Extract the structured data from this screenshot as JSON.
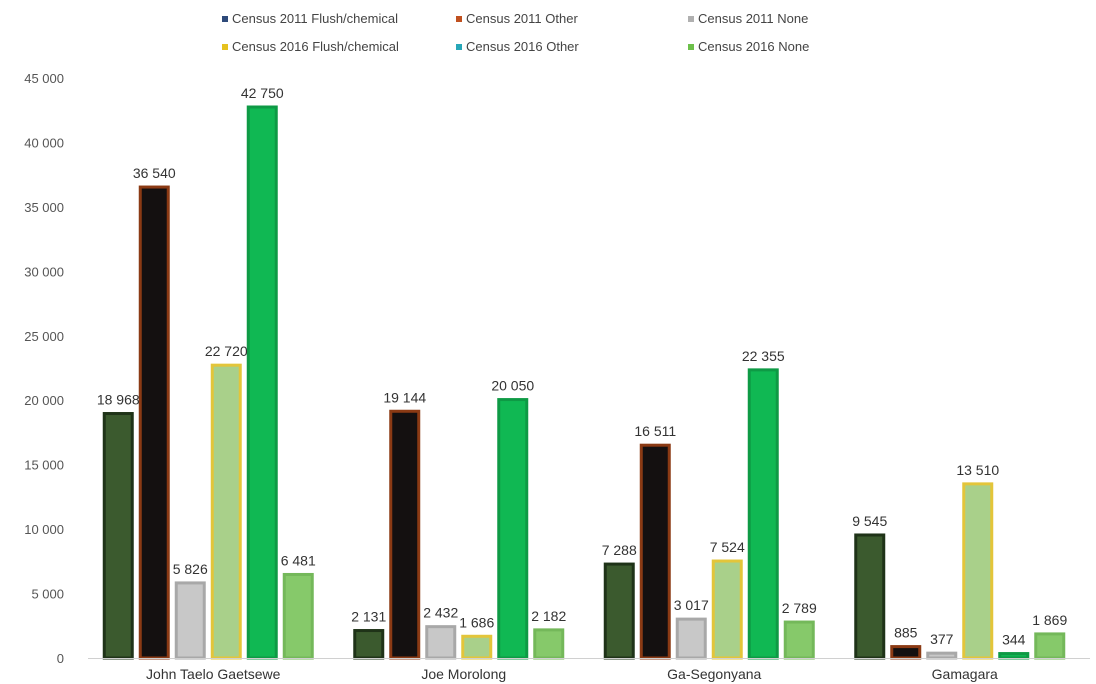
{
  "chart_data": {
    "type": "bar",
    "categories": [
      "John Taelo Gaetsewe",
      "Joe Morolong",
      "Ga-Segonyana",
      "Gamagara"
    ],
    "series": [
      {
        "name": "Census 2011 Flush/chemical",
        "values": [
          18968,
          2131,
          7288,
          9545
        ],
        "labels": [
          "18 968",
          "2 131",
          "7 288",
          "9 545"
        ],
        "legend_color": "#2e4a7a",
        "bar_color": "#3b5a2e",
        "border_color": "#1f3318"
      },
      {
        "name": "Census 2011 Other",
        "values": [
          36540,
          19144,
          16511,
          885
        ],
        "labels": [
          "36 540",
          "19 144",
          "16 511",
          "885"
        ],
        "legend_color": "#c0501f",
        "bar_color": "#141010",
        "border_color": "#8b3a14"
      },
      {
        "name": "Census 2011 None",
        "values": [
          5826,
          2432,
          3017,
          377
        ],
        "labels": [
          "5 826",
          "2 432",
          "3 017",
          "377"
        ],
        "legend_color": "#b0b0b0",
        "bar_color": "#c8c8c8",
        "border_color": "#a8a8a8"
      },
      {
        "name": "Census 2016 Flush/chemical",
        "values": [
          22720,
          1686,
          7524,
          13510
        ],
        "labels": [
          "22 720",
          "1 686",
          "7 524",
          "13 510"
        ],
        "legend_color": "#e6c21e",
        "bar_color": "#a9d08a",
        "border_color": "#e3c53a"
      },
      {
        "name": "Census 2016 Other",
        "values": [
          42750,
          20050,
          22355,
          344
        ],
        "labels": [
          "42 750",
          "20 050",
          "22 355",
          "344"
        ],
        "legend_color": "#27a7b8",
        "bar_color": "#10b853",
        "border_color": "#0e9a45"
      },
      {
        "name": "Census 2016 None",
        "values": [
          6481,
          2182,
          2789,
          1869
        ],
        "labels": [
          "6 481",
          "2 182",
          "2 789",
          "1 869"
        ],
        "legend_color": "#6cc04a",
        "bar_color": "#86c96a",
        "border_color": "#74b85a"
      }
    ],
    "y_ticks": [
      "0",
      "5 000",
      "10 000",
      "15 000",
      "20 000",
      "25 000",
      "30 000",
      "35 000",
      "40 000",
      "45 000"
    ],
    "ylim": [
      0,
      45000
    ],
    "grid": false,
    "legend_position": "top",
    "title": "",
    "xlabel": "",
    "ylabel": ""
  }
}
